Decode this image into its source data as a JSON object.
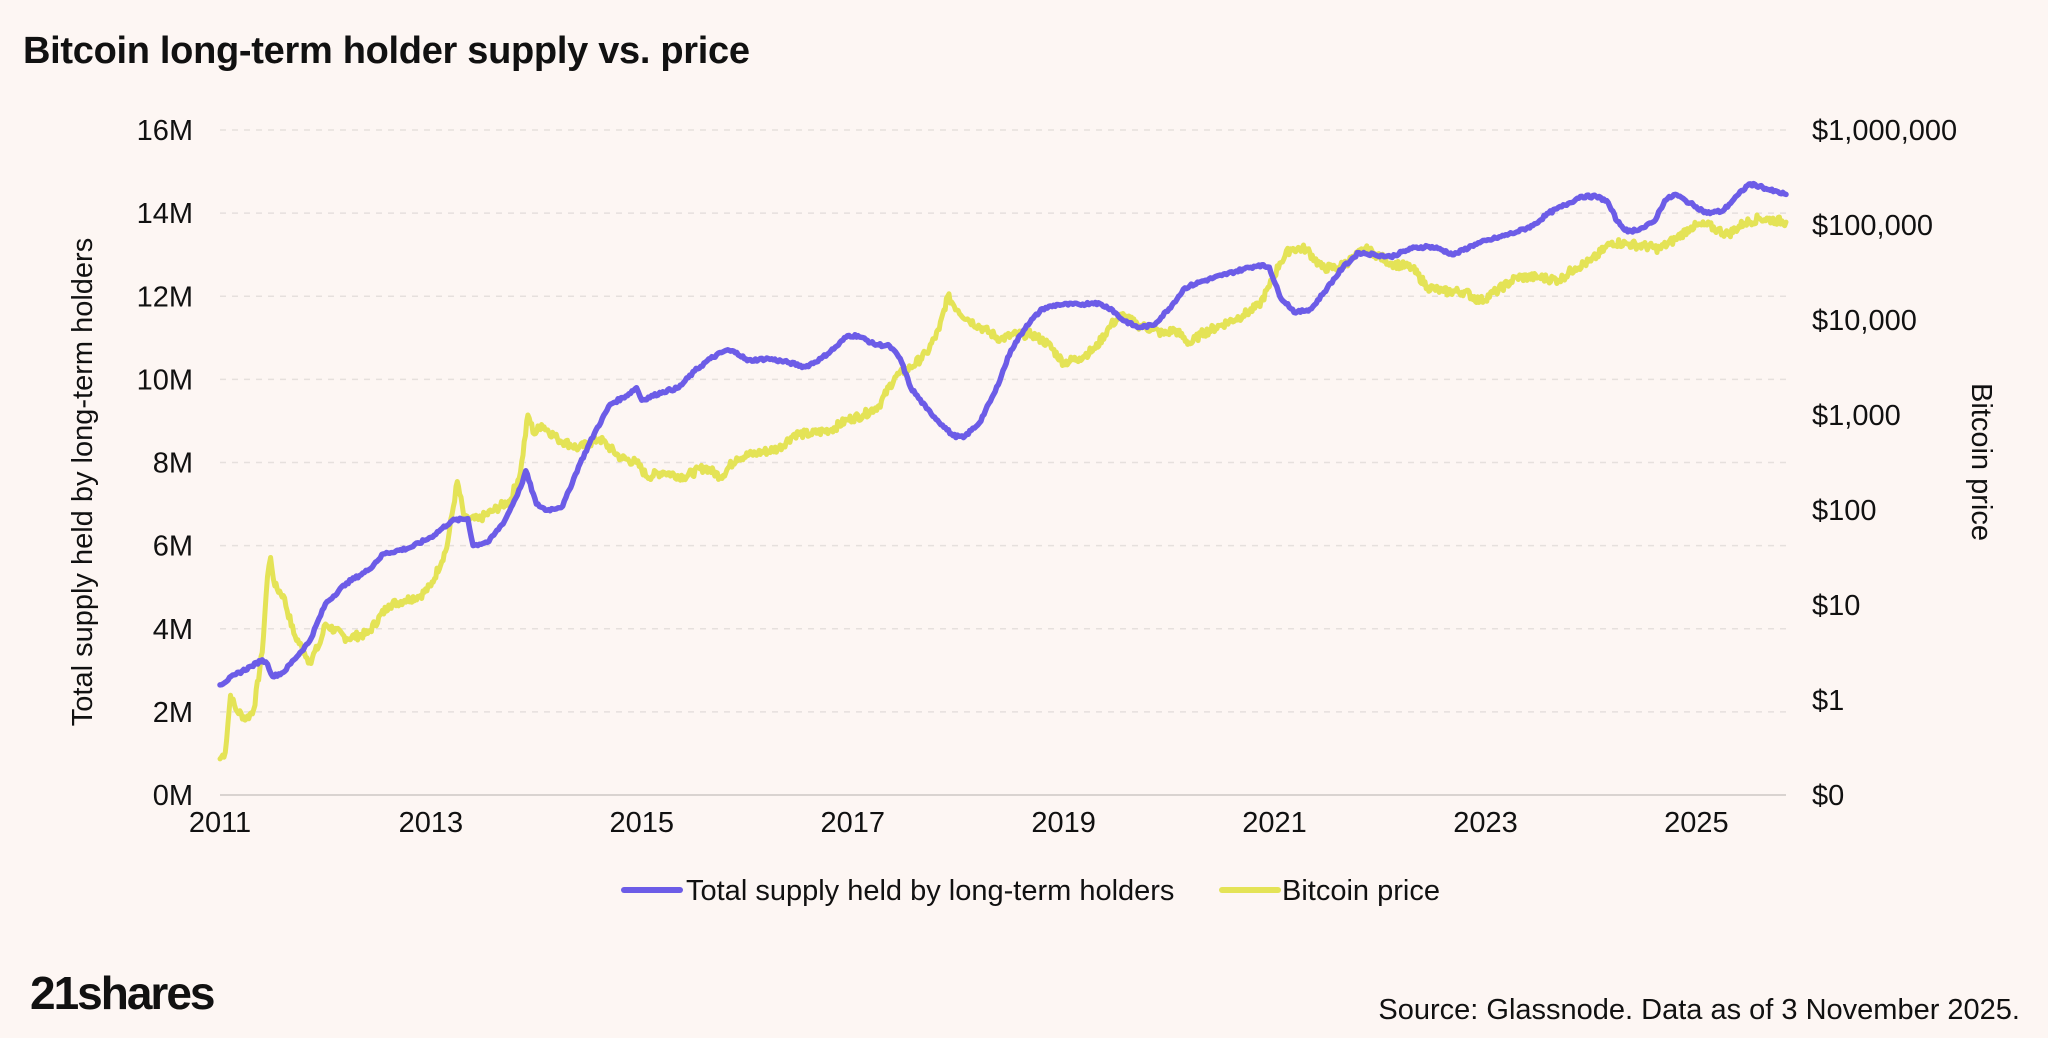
{
  "title": "Bitcoin long-term holder supply vs. price",
  "source": "Source: Glassnode. Data as of 3 November 2025.",
  "brand": "21shares",
  "colors": {
    "background": "#fdf6f3",
    "supply": "#6c5ce7",
    "price": "#e4e356",
    "grid": "#e6e0dd",
    "axis": "#d9d3d0"
  },
  "chart_data": {
    "type": "line",
    "title": "Bitcoin long-term holder supply vs. price",
    "xlabel": "",
    "ylabel": "Total supply held by long-term holders",
    "y2label": "Bitcoin price",
    "xlim": [
      2011,
      2025.85
    ],
    "ylim": [
      0,
      16000000
    ],
    "y2lim_log10": [
      -1,
      6
    ],
    "grid": true,
    "legend_position": "bottom-center",
    "x_ticks": [
      {
        "value": 2011,
        "label": "2011"
      },
      {
        "value": 2013,
        "label": "2013"
      },
      {
        "value": 2015,
        "label": "2015"
      },
      {
        "value": 2017,
        "label": "2017"
      },
      {
        "value": 2019,
        "label": "2019"
      },
      {
        "value": 2021,
        "label": "2021"
      },
      {
        "value": 2023,
        "label": "2023"
      },
      {
        "value": 2025,
        "label": "2025"
      }
    ],
    "y_ticks": [
      {
        "value": 0,
        "label": "0M"
      },
      {
        "value": 2000000,
        "label": "2M"
      },
      {
        "value": 4000000,
        "label": "4M"
      },
      {
        "value": 6000000,
        "label": "6M"
      },
      {
        "value": 8000000,
        "label": "8M"
      },
      {
        "value": 10000000,
        "label": "10M"
      },
      {
        "value": 12000000,
        "label": "12M"
      },
      {
        "value": 14000000,
        "label": "14M"
      },
      {
        "value": 16000000,
        "label": "16M"
      }
    ],
    "y2_ticks": [
      {
        "log": -1,
        "label": "$0"
      },
      {
        "log": 0,
        "label": "$1"
      },
      {
        "log": 1,
        "label": "$10"
      },
      {
        "log": 2,
        "label": "$100"
      },
      {
        "log": 3,
        "label": "$1,000"
      },
      {
        "log": 4,
        "label": "$10,000"
      },
      {
        "log": 5,
        "label": "$100,000"
      },
      {
        "log": 6,
        "label": "$1,000,000"
      }
    ],
    "series": [
      {
        "name": "Total supply held by long-term holders",
        "axis": "left",
        "color": "#6c5ce7",
        "points": [
          [
            2011.0,
            2650000
          ],
          [
            2011.15,
            2900000
          ],
          [
            2011.3,
            3100000
          ],
          [
            2011.4,
            3250000
          ],
          [
            2011.45,
            3150000
          ],
          [
            2011.5,
            2850000
          ],
          [
            2011.6,
            2950000
          ],
          [
            2011.7,
            3250000
          ],
          [
            2011.85,
            3700000
          ],
          [
            2012.0,
            4600000
          ],
          [
            2012.2,
            5100000
          ],
          [
            2012.4,
            5400000
          ],
          [
            2012.55,
            5800000
          ],
          [
            2012.8,
            5950000
          ],
          [
            2013.0,
            6200000
          ],
          [
            2013.2,
            6600000
          ],
          [
            2013.35,
            6650000
          ],
          [
            2013.4,
            6000000
          ],
          [
            2013.55,
            6100000
          ],
          [
            2013.7,
            6600000
          ],
          [
            2013.85,
            7400000
          ],
          [
            2013.9,
            7800000
          ],
          [
            2014.0,
            7000000
          ],
          [
            2014.1,
            6850000
          ],
          [
            2014.25,
            6950000
          ],
          [
            2014.4,
            7900000
          ],
          [
            2014.55,
            8700000
          ],
          [
            2014.7,
            9400000
          ],
          [
            2014.85,
            9600000
          ],
          [
            2014.95,
            9800000
          ],
          [
            2015.0,
            9500000
          ],
          [
            2015.2,
            9700000
          ],
          [
            2015.35,
            9800000
          ],
          [
            2015.5,
            10200000
          ],
          [
            2015.65,
            10500000
          ],
          [
            2015.8,
            10700000
          ],
          [
            2015.9,
            10650000
          ],
          [
            2016.0,
            10450000
          ],
          [
            2016.2,
            10500000
          ],
          [
            2016.4,
            10400000
          ],
          [
            2016.55,
            10300000
          ],
          [
            2016.7,
            10500000
          ],
          [
            2016.85,
            10800000
          ],
          [
            2016.95,
            11050000
          ],
          [
            2017.05,
            11050000
          ],
          [
            2017.2,
            10850000
          ],
          [
            2017.35,
            10800000
          ],
          [
            2017.45,
            10500000
          ],
          [
            2017.55,
            9800000
          ],
          [
            2017.7,
            9300000
          ],
          [
            2017.85,
            8900000
          ],
          [
            2017.95,
            8650000
          ],
          [
            2018.05,
            8600000
          ],
          [
            2018.2,
            8950000
          ],
          [
            2018.35,
            9700000
          ],
          [
            2018.5,
            10700000
          ],
          [
            2018.65,
            11300000
          ],
          [
            2018.8,
            11700000
          ],
          [
            2018.95,
            11800000
          ],
          [
            2019.15,
            11800000
          ],
          [
            2019.3,
            11850000
          ],
          [
            2019.45,
            11700000
          ],
          [
            2019.55,
            11450000
          ],
          [
            2019.7,
            11250000
          ],
          [
            2019.85,
            11300000
          ],
          [
            2020.0,
            11700000
          ],
          [
            2020.15,
            12200000
          ],
          [
            2020.3,
            12350000
          ],
          [
            2020.5,
            12500000
          ],
          [
            2020.7,
            12650000
          ],
          [
            2020.85,
            12750000
          ],
          [
            2020.95,
            12700000
          ],
          [
            2021.05,
            12000000
          ],
          [
            2021.2,
            11600000
          ],
          [
            2021.35,
            11700000
          ],
          [
            2021.5,
            12200000
          ],
          [
            2021.65,
            12700000
          ],
          [
            2021.8,
            13050000
          ],
          [
            2021.95,
            13000000
          ],
          [
            2022.1,
            12950000
          ],
          [
            2022.3,
            13150000
          ],
          [
            2022.45,
            13200000
          ],
          [
            2022.55,
            13150000
          ],
          [
            2022.7,
            13000000
          ],
          [
            2022.9,
            13250000
          ],
          [
            2023.1,
            13400000
          ],
          [
            2023.3,
            13550000
          ],
          [
            2023.45,
            13700000
          ],
          [
            2023.6,
            14000000
          ],
          [
            2023.8,
            14250000
          ],
          [
            2023.9,
            14400000
          ],
          [
            2024.05,
            14400000
          ],
          [
            2024.15,
            14300000
          ],
          [
            2024.25,
            13800000
          ],
          [
            2024.35,
            13550000
          ],
          [
            2024.5,
            13650000
          ],
          [
            2024.6,
            13800000
          ],
          [
            2024.7,
            14300000
          ],
          [
            2024.8,
            14450000
          ],
          [
            2024.9,
            14300000
          ],
          [
            2025.0,
            14150000
          ],
          [
            2025.1,
            14000000
          ],
          [
            2025.25,
            14050000
          ],
          [
            2025.4,
            14450000
          ],
          [
            2025.5,
            14700000
          ],
          [
            2025.6,
            14650000
          ],
          [
            2025.7,
            14550000
          ],
          [
            2025.85,
            14450000
          ]
        ]
      },
      {
        "name": "Bitcoin price",
        "axis": "right",
        "color": "#e4e356",
        "points": [
          [
            2011.0,
            -0.62
          ],
          [
            2011.05,
            -0.55
          ],
          [
            2011.1,
            0.05
          ],
          [
            2011.15,
            -0.1
          ],
          [
            2011.25,
            -0.2
          ],
          [
            2011.32,
            -0.1
          ],
          [
            2011.4,
            0.5
          ],
          [
            2011.45,
            1.3
          ],
          [
            2011.48,
            1.5
          ],
          [
            2011.52,
            1.2
          ],
          [
            2011.6,
            1.1
          ],
          [
            2011.7,
            0.7
          ],
          [
            2011.8,
            0.5
          ],
          [
            2011.85,
            0.4
          ],
          [
            2011.95,
            0.6
          ],
          [
            2012.0,
            0.8
          ],
          [
            2012.2,
            0.65
          ],
          [
            2012.4,
            0.7
          ],
          [
            2012.6,
            1.0
          ],
          [
            2012.75,
            1.05
          ],
          [
            2012.9,
            1.1
          ],
          [
            2013.0,
            1.2
          ],
          [
            2013.15,
            1.6
          ],
          [
            2013.25,
            2.3
          ],
          [
            2013.32,
            1.9
          ],
          [
            2013.45,
            1.9
          ],
          [
            2013.6,
            2.0
          ],
          [
            2013.75,
            2.1
          ],
          [
            2013.85,
            2.4
          ],
          [
            2013.92,
            3.0
          ],
          [
            2013.98,
            2.8
          ],
          [
            2014.05,
            2.9
          ],
          [
            2014.2,
            2.75
          ],
          [
            2014.4,
            2.65
          ],
          [
            2014.6,
            2.75
          ],
          [
            2014.8,
            2.55
          ],
          [
            2014.95,
            2.5
          ],
          [
            2015.05,
            2.35
          ],
          [
            2015.2,
            2.4
          ],
          [
            2015.4,
            2.35
          ],
          [
            2015.6,
            2.45
          ],
          [
            2015.75,
            2.35
          ],
          [
            2015.9,
            2.55
          ],
          [
            2016.1,
            2.6
          ],
          [
            2016.3,
            2.65
          ],
          [
            2016.45,
            2.8
          ],
          [
            2016.6,
            2.8
          ],
          [
            2016.8,
            2.85
          ],
          [
            2016.95,
            2.95
          ],
          [
            2017.1,
            3.0
          ],
          [
            2017.25,
            3.1
          ],
          [
            2017.4,
            3.4
          ],
          [
            2017.55,
            3.5
          ],
          [
            2017.7,
            3.65
          ],
          [
            2017.82,
            3.9
          ],
          [
            2017.9,
            4.25
          ],
          [
            2018.0,
            4.1
          ],
          [
            2018.1,
            4.0
          ],
          [
            2018.25,
            3.9
          ],
          [
            2018.4,
            3.8
          ],
          [
            2018.55,
            3.85
          ],
          [
            2018.7,
            3.85
          ],
          [
            2018.85,
            3.75
          ],
          [
            2019.0,
            3.55
          ],
          [
            2019.15,
            3.6
          ],
          [
            2019.3,
            3.7
          ],
          [
            2019.45,
            3.95
          ],
          [
            2019.55,
            4.05
          ],
          [
            2019.7,
            3.95
          ],
          [
            2019.85,
            3.9
          ],
          [
            2019.95,
            3.85
          ],
          [
            2020.05,
            3.9
          ],
          [
            2020.2,
            3.75
          ],
          [
            2020.3,
            3.85
          ],
          [
            2020.5,
            3.95
          ],
          [
            2020.7,
            4.05
          ],
          [
            2020.85,
            4.15
          ],
          [
            2020.95,
            4.35
          ],
          [
            2021.05,
            4.6
          ],
          [
            2021.15,
            4.75
          ],
          [
            2021.3,
            4.75
          ],
          [
            2021.45,
            4.55
          ],
          [
            2021.6,
            4.55
          ],
          [
            2021.75,
            4.65
          ],
          [
            2021.85,
            4.75
          ],
          [
            2021.95,
            4.7
          ],
          [
            2022.1,
            4.6
          ],
          [
            2022.3,
            4.55
          ],
          [
            2022.45,
            4.35
          ],
          [
            2022.6,
            4.3
          ],
          [
            2022.8,
            4.3
          ],
          [
            2022.95,
            4.2
          ],
          [
            2023.1,
            4.3
          ],
          [
            2023.3,
            4.45
          ],
          [
            2023.5,
            4.45
          ],
          [
            2023.7,
            4.42
          ],
          [
            2023.85,
            4.55
          ],
          [
            2024.0,
            4.62
          ],
          [
            2024.2,
            4.82
          ],
          [
            2024.35,
            4.8
          ],
          [
            2024.5,
            4.78
          ],
          [
            2024.65,
            4.75
          ],
          [
            2024.8,
            4.85
          ],
          [
            2024.95,
            4.98
          ],
          [
            2025.1,
            5.0
          ],
          [
            2025.2,
            4.95
          ],
          [
            2025.3,
            4.9
          ],
          [
            2025.45,
            5.02
          ],
          [
            2025.6,
            5.07
          ],
          [
            2025.75,
            5.05
          ],
          [
            2025.85,
            5.03
          ]
        ]
      }
    ]
  }
}
